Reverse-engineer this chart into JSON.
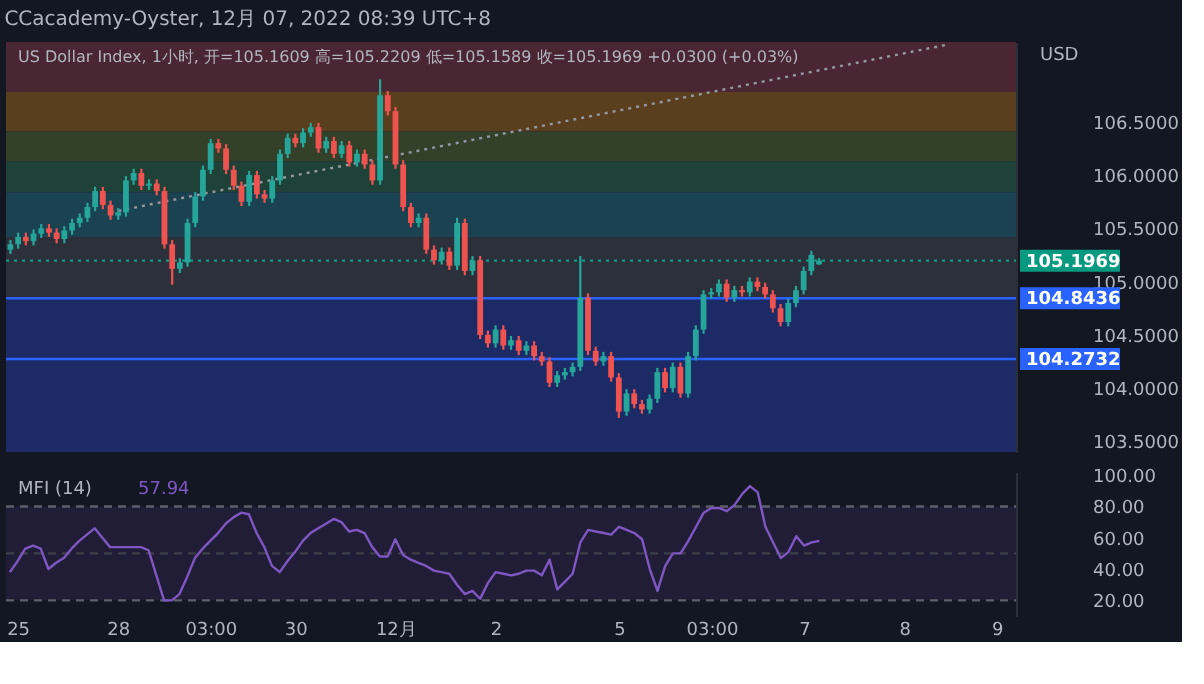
{
  "chart_data": [
    {
      "type": "candlestick",
      "title": "CCacademy-Oyster, 12月 07, 2022 08:39 UTC+8",
      "subtitle": "US Dollar Index, 1小时, 开=105.1609 高=105.2209 低=105.1589 收=105.1969 +0.0300 (+0.03%)",
      "ylabel": "USD",
      "tick_labels": "y",
      "categories": [
        null,
        "25",
        null,
        null,
        null,
        null,
        null,
        null,
        null,
        null,
        null,
        null,
        null,
        null,
        "28",
        null,
        null,
        null,
        null,
        null,
        null,
        null,
        null,
        null,
        null,
        null,
        "03:00",
        null,
        null,
        null,
        null,
        null,
        null,
        null,
        null,
        null,
        null,
        "30",
        null,
        null,
        null,
        null,
        null,
        null,
        null,
        null,
        null,
        null,
        null,
        null,
        "12月",
        null,
        null,
        null,
        null,
        null,
        null,
        null,
        null,
        null,
        null,
        null,
        null,
        "2",
        null,
        null,
        null,
        null,
        null,
        null,
        null,
        null,
        null,
        null,
        null,
        null,
        null,
        null,
        null,
        "5",
        null,
        null,
        null,
        null,
        null,
        null,
        null,
        null,
        null,
        null,
        null,
        "03:00",
        null,
        null,
        null,
        null,
        null,
        null,
        null,
        null,
        null,
        null,
        null,
        "7",
        null,
        null,
        null,
        null,
        null,
        null,
        null,
        null,
        null,
        null,
        null,
        null,
        "8",
        null,
        null,
        null,
        null,
        null,
        null,
        null,
        null,
        null,
        null,
        null,
        "9",
        null,
        null
      ],
      "ohlc": [
        [
          105.3,
          105.39,
          105.26,
          105.35
        ],
        [
          105.35,
          105.46,
          105.31,
          105.42
        ],
        [
          105.42,
          105.46,
          105.34,
          105.38
        ],
        [
          105.38,
          105.49,
          105.34,
          105.45
        ],
        [
          105.45,
          105.54,
          105.41,
          105.5
        ],
        [
          105.5,
          105.54,
          105.42,
          105.46
        ],
        [
          105.46,
          105.5,
          105.36,
          105.4
        ],
        [
          105.4,
          105.52,
          105.36,
          105.48
        ],
        [
          105.48,
          105.59,
          105.44,
          105.55
        ],
        [
          105.55,
          105.64,
          105.51,
          105.6
        ],
        [
          105.6,
          105.74,
          105.56,
          105.7
        ],
        [
          105.7,
          105.89,
          105.66,
          105.85
        ],
        [
          105.85,
          105.89,
          105.68,
          105.72
        ],
        [
          105.72,
          105.76,
          105.58,
          105.62
        ],
        [
          105.62,
          105.69,
          105.58,
          105.65
        ],
        [
          105.65,
          105.99,
          105.61,
          105.95
        ],
        [
          105.95,
          106.06,
          105.91,
          106.02
        ],
        [
          106.02,
          106.06,
          105.86,
          105.9
        ],
        [
          105.9,
          105.96,
          105.86,
          105.92
        ],
        [
          105.92,
          105.96,
          105.81,
          105.85
        ],
        [
          105.85,
          105.89,
          105.31,
          105.35
        ],
        [
          105.35,
          105.39,
          104.97,
          105.12
        ],
        [
          105.12,
          105.22,
          105.08,
          105.18
        ],
        [
          105.18,
          105.59,
          105.14,
          105.55
        ],
        [
          105.55,
          105.84,
          105.51,
          105.8
        ],
        [
          105.8,
          106.09,
          105.76,
          106.05
        ],
        [
          106.05,
          106.34,
          106.01,
          106.3
        ],
        [
          106.3,
          106.34,
          106.21,
          106.25
        ],
        [
          106.25,
          106.29,
          106.01,
          106.05
        ],
        [
          106.05,
          106.09,
          105.86,
          105.9
        ],
        [
          105.9,
          105.94,
          105.71,
          105.75
        ],
        [
          105.75,
          106.04,
          105.71,
          106.0
        ],
        [
          106.0,
          106.04,
          105.78,
          105.82
        ],
        [
          105.82,
          105.86,
          105.74,
          105.78
        ],
        [
          105.78,
          105.99,
          105.74,
          105.95
        ],
        [
          105.95,
          106.24,
          105.91,
          106.2
        ],
        [
          106.2,
          106.39,
          106.16,
          106.35
        ],
        [
          106.35,
          106.39,
          106.26,
          106.3
        ],
        [
          106.3,
          106.44,
          106.26,
          106.4
        ],
        [
          106.4,
          106.49,
          106.36,
          106.45
        ],
        [
          106.45,
          106.49,
          106.21,
          106.25
        ],
        [
          106.25,
          106.36,
          106.21,
          106.32
        ],
        [
          106.32,
          106.36,
          106.16,
          106.2
        ],
        [
          106.2,
          106.32,
          106.16,
          106.28
        ],
        [
          106.28,
          106.32,
          106.08,
          106.12
        ],
        [
          106.12,
          106.24,
          106.08,
          106.2
        ],
        [
          106.2,
          106.24,
          106.06,
          106.1
        ],
        [
          106.1,
          106.14,
          105.91,
          105.95
        ],
        [
          105.95,
          106.9,
          105.91,
          106.75
        ],
        [
          106.75,
          106.79,
          106.56,
          106.6
        ],
        [
          106.6,
          106.64,
          106.06,
          106.1
        ],
        [
          106.1,
          106.14,
          105.66,
          105.7
        ],
        [
          105.7,
          105.74,
          105.51,
          105.55
        ],
        [
          105.55,
          105.64,
          105.51,
          105.6
        ],
        [
          105.6,
          105.64,
          105.26,
          105.3
        ],
        [
          105.3,
          105.34,
          105.16,
          105.2
        ],
        [
          105.2,
          105.32,
          105.16,
          105.28
        ],
        [
          105.28,
          105.32,
          105.11,
          105.15
        ],
        [
          105.15,
          105.6,
          105.11,
          105.55
        ],
        [
          105.55,
          105.59,
          105.06,
          105.1
        ],
        [
          105.1,
          105.24,
          105.06,
          105.2
        ],
        [
          105.2,
          105.24,
          104.46,
          104.5
        ],
        [
          104.5,
          104.54,
          104.38,
          104.42
        ],
        [
          104.42,
          104.59,
          104.38,
          104.55
        ],
        [
          104.55,
          104.59,
          104.36,
          104.4
        ],
        [
          104.4,
          104.49,
          104.36,
          104.45
        ],
        [
          104.45,
          104.49,
          104.31,
          104.35
        ],
        [
          104.35,
          104.44,
          104.31,
          104.4
        ],
        [
          104.4,
          104.44,
          104.26,
          104.3
        ],
        [
          104.3,
          104.34,
          104.21,
          104.25
        ],
        [
          104.25,
          104.29,
          104.01,
          104.05
        ],
        [
          104.05,
          104.16,
          104.01,
          104.12
        ],
        [
          104.12,
          104.19,
          104.08,
          104.15
        ],
        [
          104.15,
          104.24,
          104.11,
          104.2
        ],
        [
          104.2,
          105.24,
          104.16,
          104.85
        ],
        [
          104.85,
          104.89,
          104.31,
          104.35
        ],
        [
          104.35,
          104.39,
          104.21,
          104.25
        ],
        [
          104.25,
          104.34,
          104.21,
          104.3
        ],
        [
          104.3,
          104.34,
          104.06,
          104.1
        ],
        [
          104.1,
          104.14,
          103.72,
          103.78
        ],
        [
          103.78,
          103.99,
          103.74,
          103.95
        ],
        [
          103.95,
          103.99,
          103.81,
          103.85
        ],
        [
          103.85,
          103.89,
          103.76,
          103.8
        ],
        [
          103.8,
          103.94,
          103.76,
          103.9
        ],
        [
          103.9,
          104.19,
          103.86,
          104.15
        ],
        [
          104.15,
          104.19,
          103.96,
          104.0
        ],
        [
          104.0,
          104.24,
          103.96,
          104.2
        ],
        [
          104.2,
          104.24,
          103.91,
          103.95
        ],
        [
          103.95,
          104.34,
          103.91,
          104.3
        ],
        [
          104.3,
          104.59,
          104.26,
          104.55
        ],
        [
          104.55,
          104.92,
          104.51,
          104.88
        ],
        [
          104.88,
          104.94,
          104.84,
          104.9
        ],
        [
          104.9,
          105.02,
          104.86,
          104.98
        ],
        [
          104.98,
          105.02,
          104.81,
          104.85
        ],
        [
          104.85,
          104.96,
          104.81,
          104.92
        ],
        [
          104.92,
          104.96,
          104.86,
          104.9
        ],
        [
          104.9,
          105.04,
          104.86,
          105.0
        ],
        [
          105.0,
          105.04,
          104.91,
          104.95
        ],
        [
          104.95,
          104.99,
          104.84,
          104.88
        ],
        [
          104.88,
          104.92,
          104.71,
          104.75
        ],
        [
          104.75,
          104.79,
          104.58,
          104.62
        ],
        [
          104.62,
          104.84,
          104.58,
          104.8
        ],
        [
          104.8,
          104.96,
          104.76,
          104.92
        ],
        [
          104.92,
          105.14,
          104.88,
          105.1
        ],
        [
          105.1,
          105.29,
          105.06,
          105.25
        ],
        [
          105.1609,
          105.2209,
          105.1589,
          105.1969
        ],
        null,
        null,
        null,
        null,
        null,
        null,
        null,
        null,
        null,
        null,
        null,
        null,
        null,
        null,
        null,
        null,
        null,
        null,
        null,
        null,
        null,
        null,
        null,
        null,
        null
      ],
      "colors": [
        "#26a69a",
        "#26a69a",
        "#ef5350",
        "#26a69a",
        "#26a69a",
        "#ef5350",
        "#ef5350",
        "#26a69a",
        "#26a69a",
        "#26a69a",
        "#26a69a",
        "#26a69a",
        "#ef5350",
        "#ef5350",
        "#26a69a",
        "#26a69a",
        "#26a69a",
        "#ef5350",
        "#26a69a",
        "#ef5350",
        "#ef5350",
        "#ef5350",
        "#26a69a",
        "#26a69a",
        "#26a69a",
        "#26a69a",
        "#26a69a",
        "#ef5350",
        "#ef5350",
        "#ef5350",
        "#ef5350",
        "#26a69a",
        "#ef5350",
        "#ef5350",
        "#26a69a",
        "#26a69a",
        "#26a69a",
        "#ef5350",
        "#26a69a",
        "#26a69a",
        "#ef5350",
        "#26a69a",
        "#ef5350",
        "#26a69a",
        "#ef5350",
        "#26a69a",
        "#ef5350",
        "#ef5350",
        "#26a69a",
        "#ef5350",
        "#ef5350",
        "#ef5350",
        "#ef5350",
        "#26a69a",
        "#ef5350",
        "#ef5350",
        "#26a69a",
        "#ef5350",
        "#26a69a",
        "#ef5350",
        "#26a69a",
        "#ef5350",
        "#ef5350",
        "#26a69a",
        "#ef5350",
        "#26a69a",
        "#ef5350",
        "#26a69a",
        "#ef5350",
        "#ef5350",
        "#ef5350",
        "#26a69a",
        "#26a69a",
        "#26a69a",
        "#26a69a",
        "#ef5350",
        "#ef5350",
        "#26a69a",
        "#ef5350",
        "#ef5350",
        "#26a69a",
        "#ef5350",
        "#ef5350",
        "#26a69a",
        "#26a69a",
        "#ef5350",
        "#26a69a",
        "#ef5350",
        "#26a69a",
        "#26a69a",
        "#26a69a",
        "#26a69a",
        "#26a69a",
        "#ef5350",
        "#26a69a",
        "#ef5350",
        "#26a69a",
        "#ef5350",
        "#ef5350",
        "#ef5350",
        "#ef5350",
        "#26a69a",
        "#26a69a",
        "#26a69a",
        "#26a69a",
        "#26a69a",
        null,
        null,
        null,
        null,
        null,
        null,
        null,
        null,
        null,
        null,
        null,
        null,
        null,
        null,
        null,
        null,
        null,
        null,
        null,
        null,
        null,
        null,
        null,
        null,
        null
      ],
      "series": [
        {
          "type": "line",
          "color": "#9598a1",
          "line_style": "dotted",
          "values": [
            null,
            null,
            null,
            null,
            null,
            null,
            null,
            null,
            null,
            null,
            null,
            null,
            null,
            105.65,
            null,
            null,
            null,
            null,
            null,
            null,
            null,
            null,
            null,
            null,
            null,
            null,
            null,
            null,
            null,
            null,
            null,
            null,
            null,
            null,
            null,
            null,
            null,
            null,
            null,
            null,
            null,
            null,
            null,
            null,
            null,
            null,
            null,
            null,
            null,
            null,
            null,
            null,
            null,
            null,
            null,
            null,
            null,
            null,
            null,
            null,
            null,
            null,
            null,
            null,
            null,
            null,
            null,
            null,
            null,
            null,
            null,
            null,
            null,
            null,
            null,
            null,
            null,
            null,
            null,
            null,
            null,
            null,
            null,
            null,
            null,
            null,
            null,
            null,
            null,
            null,
            null,
            null,
            null,
            null,
            null,
            null,
            null,
            null,
            null,
            null,
            null,
            null,
            null,
            null,
            null,
            null,
            null,
            null,
            null,
            null,
            null,
            null,
            null,
            null,
            null,
            null,
            null,
            null,
            null,
            null,
            null,
            null,
            107.23,
            null,
            null,
            null,
            null,
            null,
            null,
            null,
            null
          ]
        }
      ],
      "ylim": [
        103.4,
        107.25
      ],
      "yticks": [
        {
          "value": 103.5,
          "label": "103.5000"
        },
        {
          "value": 104.0,
          "label": "104.0000"
        },
        {
          "value": 104.5,
          "label": "104.5000"
        },
        {
          "value": 105.0,
          "label": "105.0000"
        },
        {
          "value": 105.5,
          "label": "105.5000"
        },
        {
          "value": 106.0,
          "label": "106.0000"
        },
        {
          "value": 106.5,
          "label": "106.5000"
        }
      ],
      "bands": [
        {
          "axis": "y",
          "from": 106.78,
          "to": 107.25,
          "color": "#4a2633"
        },
        {
          "axis": "y",
          "from": 106.41,
          "to": 106.78,
          "color": "#5a3f1f"
        },
        {
          "axis": "y",
          "from": 106.13,
          "to": 106.41,
          "color": "#33402a"
        },
        {
          "axis": "y",
          "from": 105.84,
          "to": 106.13,
          "color": "#1f4238"
        },
        {
          "axis": "y",
          "from": 105.42,
          "to": 105.84,
          "color": "#1b4250"
        },
        {
          "axis": "y",
          "from": 104.84,
          "to": 105.42,
          "color": "#2c303b"
        },
        {
          "axis": "y",
          "from": 103.4,
          "to": 104.84,
          "color": "#1c2a66"
        }
      ],
      "ref_lines": [
        {
          "axis": "y",
          "value": 104.8436,
          "label": "104.8436",
          "color": "#2962ff"
        },
        {
          "axis": "y",
          "value": 104.2732,
          "label": "104.2732",
          "color": "#2962ff"
        },
        {
          "axis": "y",
          "value": 105.1969,
          "label": "105.1969",
          "color": "#089981",
          "line_style": "dotted"
        }
      ]
    },
    {
      "type": "line",
      "categories": [
        null,
        "25",
        null,
        null,
        null,
        null,
        null,
        null,
        null,
        null,
        null,
        null,
        null,
        null,
        "28",
        null,
        null,
        null,
        null,
        null,
        null,
        null,
        null,
        null,
        null,
        null,
        "03:00",
        null,
        null,
        null,
        null,
        null,
        null,
        null,
        null,
        null,
        null,
        "30",
        null,
        null,
        null,
        null,
        null,
        null,
        null,
        null,
        null,
        null,
        null,
        null,
        "12月",
        null,
        null,
        null,
        null,
        null,
        null,
        null,
        null,
        null,
        null,
        null,
        null,
        "2",
        null,
        null,
        null,
        null,
        null,
        null,
        null,
        null,
        null,
        null,
        null,
        null,
        null,
        null,
        null,
        "5",
        null,
        null,
        null,
        null,
        null,
        null,
        null,
        null,
        null,
        null,
        null,
        "03:00",
        null,
        null,
        null,
        null,
        null,
        null,
        null,
        null,
        null,
        null,
        null,
        "7",
        null,
        null,
        null,
        null,
        null,
        null,
        null,
        null,
        null,
        null,
        null,
        null,
        "8",
        null,
        null,
        null,
        null,
        null,
        null,
        null,
        null,
        null,
        null,
        null,
        "9",
        null,
        null
      ],
      "series": [
        {
          "name": "MFI (14)",
          "color": "#7e57c2",
          "values": [
            38,
            45,
            53,
            55,
            53,
            40,
            44,
            47,
            53,
            58,
            62,
            66,
            60,
            54,
            54,
            54,
            54,
            54,
            52,
            36,
            20,
            20,
            24,
            35,
            47,
            53,
            58,
            63,
            69,
            73,
            76,
            75,
            63,
            54,
            42,
            38,
            45,
            51,
            58,
            63,
            66,
            69,
            72,
            70,
            64,
            65,
            63,
            54,
            48,
            48,
            59,
            49,
            46,
            44,
            42,
            39,
            38,
            37,
            30,
            24,
            26,
            21,
            31,
            38,
            37,
            36,
            37,
            39,
            39,
            36,
            46,
            27,
            32,
            37,
            57,
            65,
            64,
            63,
            62,
            67,
            65,
            63,
            59,
            40,
            26,
            42,
            50,
            50,
            58,
            67,
            76,
            79,
            79,
            77,
            81,
            88,
            93,
            89,
            67,
            57,
            47,
            51,
            61,
            55,
            57,
            58,
            null,
            null,
            null,
            null,
            null,
            null,
            null,
            null,
            null,
            null,
            null,
            null,
            null,
            null,
            null,
            null,
            null,
            null,
            null,
            null,
            null,
            null,
            null,
            null,
            null
          ]
        }
      ],
      "annotations": [
        "57.94"
      ],
      "ylim": [
        10,
        102
      ],
      "yticks": [
        {
          "value": 20,
          "label": "20.00"
        },
        {
          "value": 40,
          "label": "40.00"
        },
        {
          "value": 60,
          "label": "60.00"
        },
        {
          "value": 80,
          "label": "80.00"
        },
        {
          "value": 100,
          "label": "100.00"
        }
      ],
      "bands": [
        {
          "axis": "y",
          "from": 20,
          "to": 80,
          "color": "#221d36"
        }
      ],
      "ref_lines": [
        {
          "axis": "y",
          "value": 80,
          "color": "#5d606b",
          "line_style": "dashed"
        },
        {
          "axis": "y",
          "value": 50,
          "color": "#3c3f4a",
          "line_style": "dashed"
        },
        {
          "axis": "y",
          "value": 20,
          "color": "#5d606b",
          "line_style": "dashed"
        }
      ]
    }
  ]
}
